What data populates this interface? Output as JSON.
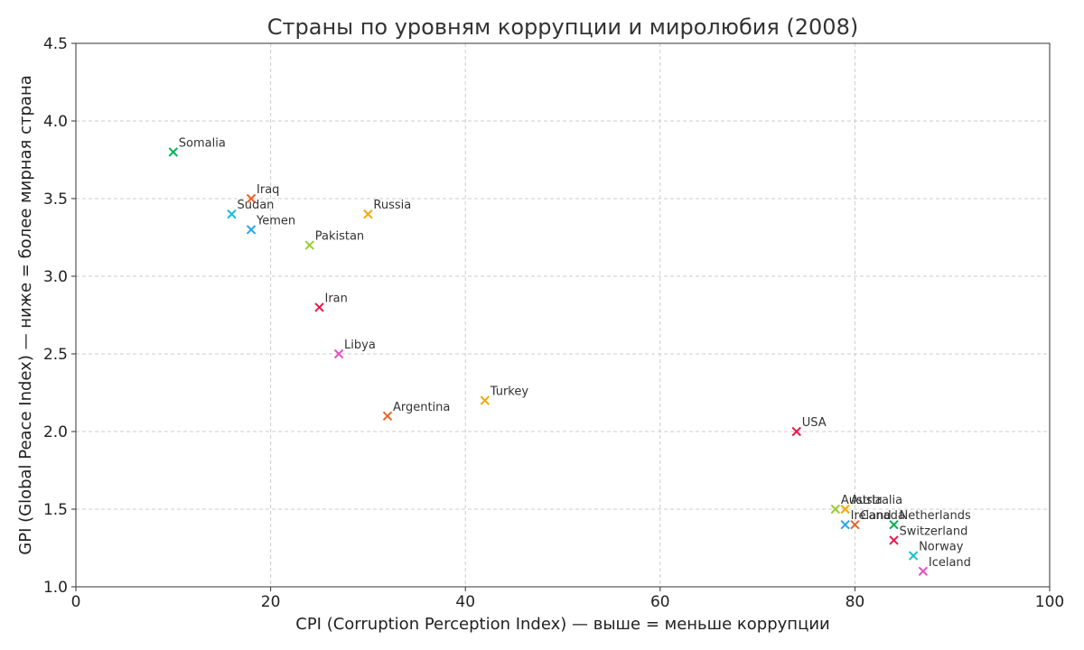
{
  "chart_data": {
    "type": "scatter",
    "title": "Страны по уровням коррупции и миролюбия (2008)",
    "xlabel": "CPI (Corruption Perception Index) — выше = меньше коррупции",
    "ylabel": "GPI (Global Peace Index) — ниже = более мирная страна",
    "xlim": [
      0,
      100
    ],
    "ylim": [
      1.0,
      4.5
    ],
    "xticks": [
      "0",
      "20",
      "40",
      "60",
      "80",
      "100"
    ],
    "xtick_values": [
      0,
      20,
      40,
      60,
      80,
      100
    ],
    "yticks": [
      "1.0",
      "1.5",
      "2.0",
      "2.5",
      "3.0",
      "3.5",
      "4.0",
      "4.5"
    ],
    "ytick_values": [
      1.0,
      1.5,
      2.0,
      2.5,
      3.0,
      3.5,
      4.0,
      4.5
    ],
    "grid": true,
    "marker": "x",
    "points": [
      {
        "label": "Somalia",
        "x": 10,
        "y": 3.8,
        "color": "#00b050"
      },
      {
        "label": "Iraq",
        "x": 18,
        "y": 3.5,
        "color": "#e8632b"
      },
      {
        "label": "Sudan",
        "x": 16,
        "y": 3.4,
        "color": "#17becf"
      },
      {
        "label": "Yemen",
        "x": 18,
        "y": 3.3,
        "color": "#22a7f0"
      },
      {
        "label": "Russia",
        "x": 30,
        "y": 3.4,
        "color": "#f5a800"
      },
      {
        "label": "Pakistan",
        "x": 24,
        "y": 3.2,
        "color": "#9acd32"
      },
      {
        "label": "Iran",
        "x": 25,
        "y": 2.8,
        "color": "#e6194b"
      },
      {
        "label": "Libya",
        "x": 27,
        "y": 2.5,
        "color": "#e84fc4"
      },
      {
        "label": "Argentina",
        "x": 32,
        "y": 2.1,
        "color": "#e8632b"
      },
      {
        "label": "Turkey",
        "x": 42,
        "y": 2.2,
        "color": "#f5a800"
      },
      {
        "label": "USA",
        "x": 74,
        "y": 2.0,
        "color": "#e6194b"
      },
      {
        "label": "Austria",
        "x": 78,
        "y": 1.5,
        "color": "#9acd32"
      },
      {
        "label": "Australia",
        "x": 79,
        "y": 1.5,
        "color": "#f5a800"
      },
      {
        "label": "Ireland",
        "x": 79,
        "y": 1.4,
        "color": "#22a7f0"
      },
      {
        "label": "Canada",
        "x": 80,
        "y": 1.4,
        "color": "#e8632b"
      },
      {
        "label": "Netherlands",
        "x": 84,
        "y": 1.4,
        "color": "#00b050"
      },
      {
        "label": "Switzerland",
        "x": 84,
        "y": 1.3,
        "color": "#e6194b"
      },
      {
        "label": "Norway",
        "x": 86,
        "y": 1.2,
        "color": "#17becf"
      },
      {
        "label": "Iceland",
        "x": 87,
        "y": 1.1,
        "color": "#e84fc4"
      }
    ]
  }
}
